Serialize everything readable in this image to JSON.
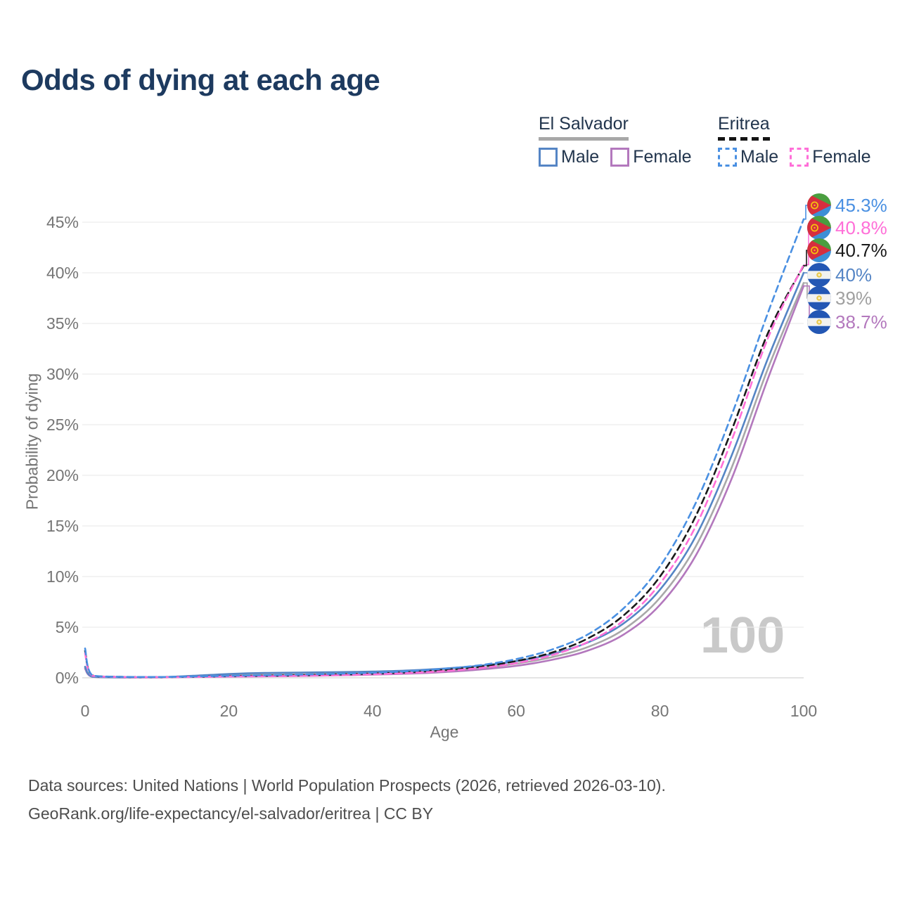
{
  "header": {
    "title": "Odds of dying at each age"
  },
  "legend": {
    "groups": [
      {
        "title": "El Salvador",
        "style": "solid",
        "items": [
          {
            "label": "Male",
            "series": "es_male"
          },
          {
            "label": "Female",
            "series": "es_female"
          }
        ]
      },
      {
        "title": "Eritrea",
        "style": "dashed",
        "items": [
          {
            "label": "Male",
            "series": "er_male"
          },
          {
            "label": "Female",
            "series": "er_female"
          }
        ]
      }
    ]
  },
  "chart_data": {
    "type": "line",
    "title": "Odds of dying at each age",
    "xlabel": "Age",
    "ylabel": "Probability of dying",
    "xlim": [
      0,
      100
    ],
    "ylim": [
      0,
      46
    ],
    "x_ticks": [
      0,
      20,
      40,
      60,
      80,
      100
    ],
    "y_ticks": [
      "0%",
      "5%",
      "10%",
      "15%",
      "20%",
      "25%",
      "30%",
      "35%",
      "40%",
      "45%"
    ],
    "grid": "horizontal",
    "legend_position": "top-right",
    "watermark": "100",
    "x": [
      0,
      1,
      5,
      10,
      15,
      20,
      25,
      30,
      35,
      40,
      45,
      50,
      55,
      60,
      65,
      70,
      75,
      80,
      85,
      90,
      95,
      100
    ],
    "series": [
      {
        "id": "es_total",
        "name": "El Salvador",
        "color": "#a8a8a8",
        "style": "solid",
        "values": [
          1.0,
          0.11,
          0.04,
          0.05,
          0.13,
          0.24,
          0.3,
          0.34,
          0.38,
          0.44,
          0.54,
          0.72,
          0.98,
          1.4,
          2.05,
          3.05,
          4.8,
          7.9,
          13.0,
          20.8,
          30.5,
          39.0
        ]
      },
      {
        "id": "es_female",
        "name": "El Salvador Female",
        "color": "#b378bd",
        "style": "solid",
        "values": [
          0.9,
          0.1,
          0.04,
          0.04,
          0.08,
          0.12,
          0.15,
          0.19,
          0.24,
          0.31,
          0.41,
          0.57,
          0.82,
          1.18,
          1.78,
          2.7,
          4.3,
          7.2,
          12.1,
          19.7,
          29.5,
          38.7
        ]
      },
      {
        "id": "es_male",
        "name": "El Salvador Male",
        "color": "#5585c5",
        "style": "solid",
        "values": [
          1.1,
          0.12,
          0.05,
          0.06,
          0.2,
          0.38,
          0.48,
          0.52,
          0.56,
          0.62,
          0.72,
          0.92,
          1.2,
          1.65,
          2.35,
          3.5,
          5.4,
          8.7,
          14.0,
          22.0,
          31.5,
          40.0
        ]
      },
      {
        "id": "er_total",
        "name": "Eritrea",
        "color": "#1a1a1a",
        "style": "dashed",
        "values": [
          2.65,
          0.23,
          0.09,
          0.07,
          0.11,
          0.17,
          0.21,
          0.26,
          0.33,
          0.42,
          0.55,
          0.78,
          1.1,
          1.65,
          2.5,
          3.9,
          6.2,
          10.0,
          16.0,
          24.5,
          34.0,
          40.7
        ]
      },
      {
        "id": "er_female",
        "name": "Eritrea Female",
        "color": "#ff6fd8",
        "style": "dashed",
        "values": [
          2.4,
          0.21,
          0.08,
          0.06,
          0.09,
          0.13,
          0.16,
          0.2,
          0.26,
          0.35,
          0.47,
          0.67,
          0.97,
          1.45,
          2.25,
          3.55,
          5.7,
          9.3,
          15.0,
          23.5,
          33.5,
          40.8
        ]
      },
      {
        "id": "er_male",
        "name": "Eritrea Male",
        "color": "#4a90e2",
        "style": "dashed",
        "values": [
          2.9,
          0.25,
          0.1,
          0.08,
          0.13,
          0.2,
          0.26,
          0.32,
          0.4,
          0.5,
          0.65,
          0.9,
          1.25,
          1.85,
          2.8,
          4.3,
          6.9,
          11.0,
          17.3,
          26.0,
          36.0,
          45.3
        ]
      }
    ],
    "end_labels": [
      {
        "text": "45.3%",
        "color": "#4a90e2",
        "flag": "eritrea",
        "series": "er_male"
      },
      {
        "text": "40.8%",
        "color": "#ff6fd8",
        "flag": "eritrea",
        "series": "er_female"
      },
      {
        "text": "40.7%",
        "color": "#1a1a1a",
        "flag": "eritrea",
        "series": "er_total"
      },
      {
        "text": "40%",
        "color": "#5585c5",
        "flag": "el-salvador",
        "series": "es_male"
      },
      {
        "text": "39%",
        "color": "#a0a0a0",
        "flag": "el-salvador",
        "series": "es_total"
      },
      {
        "text": "38.7%",
        "color": "#b378bd",
        "flag": "el-salvador",
        "series": "es_female"
      }
    ]
  },
  "footer": {
    "line1": "Data sources: United Nations | World Population Prospects (2026, retrieved 2026-03-10).",
    "line2": "GeoRank.org/life-expectancy/el-salvador/eritrea | CC BY"
  }
}
